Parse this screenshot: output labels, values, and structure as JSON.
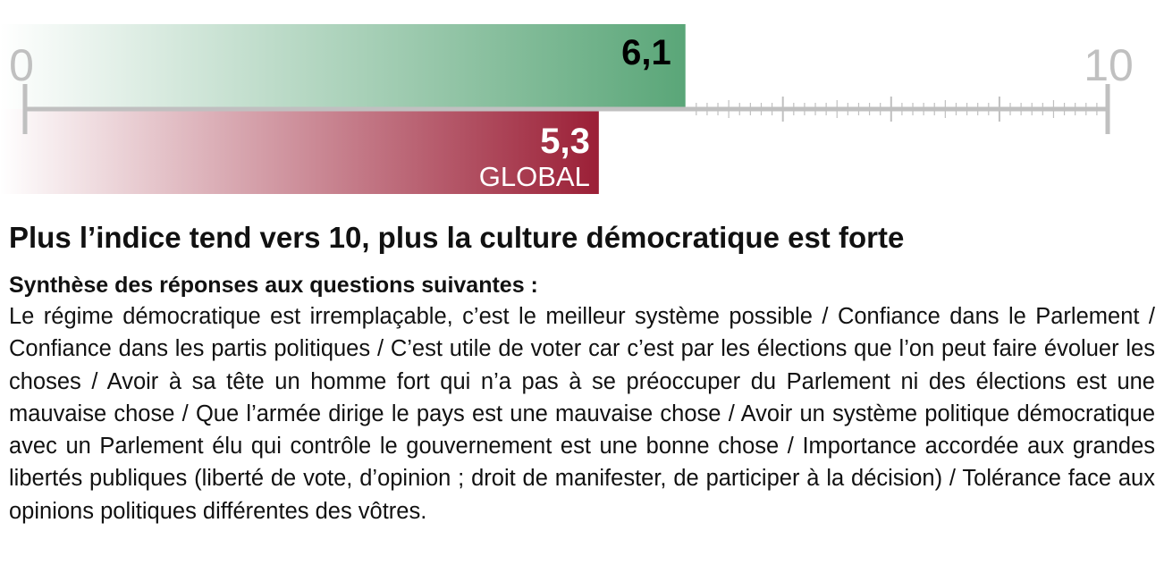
{
  "chart_data": {
    "type": "bar",
    "xlim": [
      0,
      10
    ],
    "tick_labels": [
      "0",
      "10"
    ],
    "bars": [
      {
        "value": 6.1,
        "value_label": "6,1",
        "label": "",
        "color": "#5aa678"
      },
      {
        "value": 5.3,
        "value_label": "5,3",
        "label": "GLOBAL",
        "color": "#9b1f36"
      }
    ],
    "axis_color": "#c0c0c0"
  },
  "caption": {
    "title": "Plus l’indice tend vers 10, plus la culture démocratique est forte",
    "subtitle": "Synthèse des réponses aux questions suivantes :",
    "body": "Le régime démocratique est irremplaçable, c’est le meilleur système possible / Confiance dans le Parlement / Confiance dans les partis politiques / C’est utile de voter car c’est par les élections que l’on peut faire évoluer les choses / Avoir à sa tête un homme fort qui n’a pas à se préoccuper du Parlement ni des élections est une mauvaise chose / Que l’armée dirige le pays est une mauvaise chose / Avoir un système politique démocratique avec un Parlement élu qui contrôle le gouvernement est une bonne chose / Importance accordée aux grandes libertés publiques (liberté de vote, d’opinion ; droit de manifester, de participer à la décision) / Tolérance face aux opinions politiques différentes des vôtres."
  }
}
